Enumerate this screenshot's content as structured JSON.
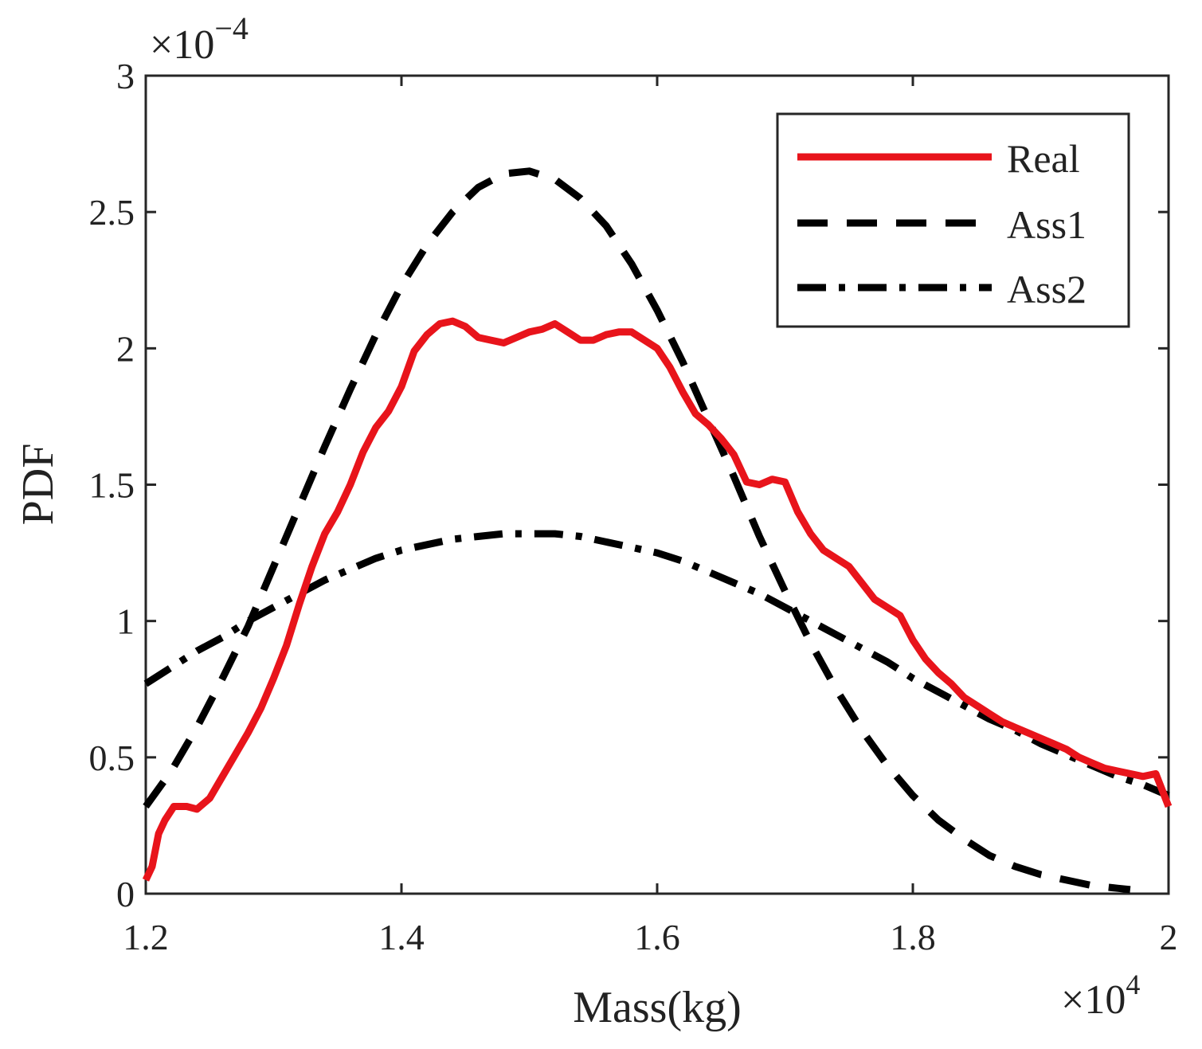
{
  "chart_data": {
    "type": "line",
    "title": "",
    "xlabel": "Mass(kg)",
    "ylabel": "PDF",
    "x_multiplier_label": "×10",
    "x_multiplier_exponent": "4",
    "y_multiplier_label": "×10",
    "y_multiplier_exponent": "−4",
    "xlim": [
      1.2,
      2.0
    ],
    "ylim": [
      0,
      3
    ],
    "xticks": [
      1.2,
      1.4,
      1.6,
      1.8,
      2.0
    ],
    "xtick_labels": [
      "1.2",
      "1.4",
      "1.6",
      "1.8",
      "2"
    ],
    "yticks": [
      0,
      0.5,
      1,
      1.5,
      2,
      2.5,
      3
    ],
    "ytick_labels": [
      "0",
      "0.5",
      "1",
      "1.5",
      "2",
      "2.5",
      "3"
    ],
    "grid": false,
    "legend_position": "top-right",
    "series": [
      {
        "name": "Real",
        "style": "solid",
        "color": "#e8141b",
        "x": [
          1.2,
          1.205,
          1.21,
          1.215,
          1.222,
          1.232,
          1.24,
          1.25,
          1.26,
          1.27,
          1.28,
          1.29,
          1.3,
          1.31,
          1.32,
          1.33,
          1.34,
          1.35,
          1.36,
          1.37,
          1.38,
          1.39,
          1.4,
          1.41,
          1.42,
          1.43,
          1.44,
          1.45,
          1.46,
          1.47,
          1.48,
          1.49,
          1.5,
          1.51,
          1.52,
          1.53,
          1.54,
          1.55,
          1.56,
          1.57,
          1.58,
          1.59,
          1.6,
          1.61,
          1.62,
          1.63,
          1.64,
          1.65,
          1.66,
          1.67,
          1.68,
          1.69,
          1.7,
          1.71,
          1.72,
          1.73,
          1.74,
          1.75,
          1.76,
          1.77,
          1.78,
          1.79,
          1.8,
          1.81,
          1.82,
          1.83,
          1.84,
          1.85,
          1.86,
          1.87,
          1.88,
          1.89,
          1.9,
          1.91,
          1.92,
          1.93,
          1.94,
          1.95,
          1.96,
          1.97,
          1.98,
          1.99,
          1.995,
          2.0
        ],
        "y": [
          0.05,
          0.1,
          0.22,
          0.27,
          0.32,
          0.32,
          0.31,
          0.35,
          0.43,
          0.51,
          0.59,
          0.68,
          0.79,
          0.91,
          1.06,
          1.2,
          1.32,
          1.4,
          1.5,
          1.62,
          1.71,
          1.77,
          1.86,
          1.99,
          2.05,
          2.09,
          2.1,
          2.08,
          2.04,
          2.03,
          2.02,
          2.04,
          2.06,
          2.07,
          2.09,
          2.06,
          2.03,
          2.03,
          2.05,
          2.06,
          2.06,
          2.03,
          2.0,
          1.93,
          1.84,
          1.76,
          1.72,
          1.67,
          1.61,
          1.51,
          1.5,
          1.52,
          1.51,
          1.4,
          1.32,
          1.26,
          1.23,
          1.2,
          1.14,
          1.08,
          1.05,
          1.02,
          0.93,
          0.86,
          0.81,
          0.77,
          0.72,
          0.69,
          0.66,
          0.63,
          0.61,
          0.59,
          0.57,
          0.55,
          0.53,
          0.5,
          0.48,
          0.46,
          0.45,
          0.44,
          0.43,
          0.44,
          0.38,
          0.32
        ]
      },
      {
        "name": "Ass1",
        "style": "dashed",
        "color": "#000000",
        "x": [
          1.2,
          1.22,
          1.24,
          1.26,
          1.28,
          1.3,
          1.32,
          1.34,
          1.36,
          1.38,
          1.4,
          1.42,
          1.44,
          1.46,
          1.48,
          1.5,
          1.52,
          1.54,
          1.56,
          1.58,
          1.6,
          1.62,
          1.64,
          1.66,
          1.68,
          1.7,
          1.72,
          1.74,
          1.76,
          1.78,
          1.8,
          1.82,
          1.84,
          1.86,
          1.88,
          1.9,
          1.92,
          1.94,
          1.96,
          1.97
        ],
        "y": [
          0.32,
          0.45,
          0.61,
          0.79,
          0.98,
          1.2,
          1.42,
          1.64,
          1.85,
          2.05,
          2.23,
          2.38,
          2.5,
          2.59,
          2.64,
          2.65,
          2.62,
          2.55,
          2.45,
          2.31,
          2.14,
          1.95,
          1.74,
          1.53,
          1.31,
          1.11,
          0.92,
          0.75,
          0.6,
          0.47,
          0.36,
          0.27,
          0.2,
          0.14,
          0.1,
          0.07,
          0.05,
          0.03,
          0.02,
          0.015
        ]
      },
      {
        "name": "Ass2",
        "style": "dash-dot",
        "color": "#000000",
        "x": [
          1.2,
          1.22,
          1.24,
          1.26,
          1.28,
          1.3,
          1.32,
          1.34,
          1.36,
          1.38,
          1.4,
          1.42,
          1.44,
          1.46,
          1.48,
          1.5,
          1.52,
          1.54,
          1.56,
          1.58,
          1.6,
          1.62,
          1.64,
          1.66,
          1.68,
          1.7,
          1.72,
          1.74,
          1.76,
          1.78,
          1.8,
          1.82,
          1.84,
          1.86,
          1.88,
          1.9,
          1.92,
          1.94,
          1.96,
          1.98,
          2.0
        ],
        "y": [
          0.77,
          0.83,
          0.89,
          0.94,
          1.0,
          1.05,
          1.1,
          1.15,
          1.19,
          1.23,
          1.26,
          1.28,
          1.3,
          1.31,
          1.32,
          1.32,
          1.32,
          1.31,
          1.29,
          1.27,
          1.25,
          1.22,
          1.18,
          1.14,
          1.1,
          1.05,
          1.0,
          0.95,
          0.9,
          0.85,
          0.79,
          0.74,
          0.69,
          0.64,
          0.6,
          0.55,
          0.51,
          0.47,
          0.43,
          0.4,
          0.36
        ]
      }
    ]
  }
}
